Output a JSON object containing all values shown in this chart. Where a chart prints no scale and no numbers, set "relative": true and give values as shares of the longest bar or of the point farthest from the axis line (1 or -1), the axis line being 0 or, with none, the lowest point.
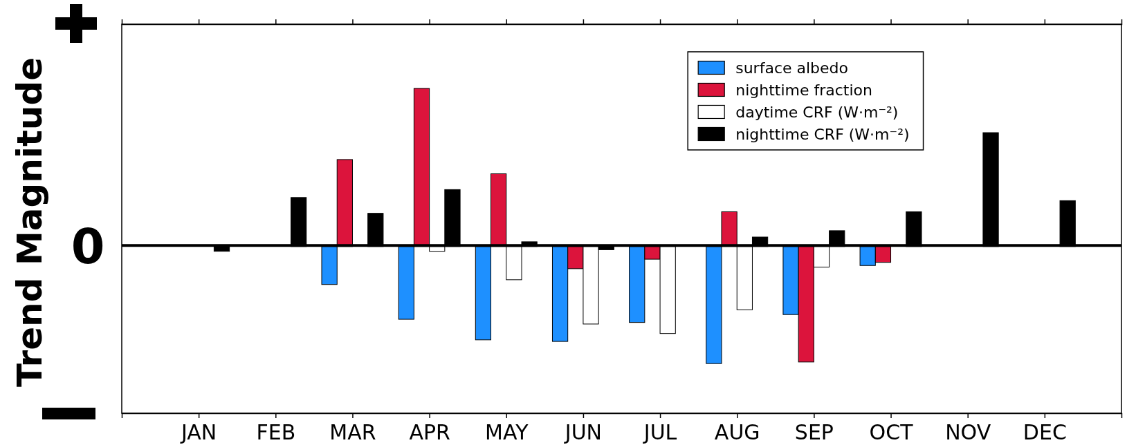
{
  "chart_data": {
    "type": "bar",
    "ylabel": "Trend Magnitude",
    "relative": true,
    "legend": "top right",
    "categories": [
      "JAN",
      "FEB",
      "MAR",
      "APR",
      "MAY",
      "JUN",
      "JUL",
      "AUG",
      "SEP",
      "OCT",
      "NOV",
      "DEC"
    ],
    "series": [
      {
        "name": "surface albedo",
        "color": "#1e90ff",
        "values": [
          0,
          0,
          -0.24,
          -0.46,
          -0.59,
          -0.6,
          -0.48,
          -0.74,
          -0.43,
          -0.12,
          0,
          0
        ]
      },
      {
        "name": "nighttime fraction",
        "color": "#dc143c",
        "values": [
          0,
          0,
          0.55,
          1,
          0.46,
          -0.14,
          -0.08,
          0.22,
          -0.73,
          -0.1,
          0,
          0
        ]
      },
      {
        "name": "daytime CRF (W·m⁻²)",
        "color": "#ffffff",
        "values": [
          0,
          0,
          0,
          -0.03,
          -0.21,
          -0.49,
          -0.55,
          -0.4,
          -0.13,
          0,
          0,
          0
        ]
      },
      {
        "name": "nighttime CRF (W·m⁻²)",
        "color": "#000000",
        "values": [
          -0.03,
          0.31,
          0.21,
          0.36,
          0.03,
          -0.02,
          0,
          0.06,
          0.1,
          0.22,
          0.72,
          0.29
        ]
      }
    ],
    "ref_lines": [
      {
        "axis": "y",
        "value": 0,
        "label": "0"
      }
    ]
  }
}
